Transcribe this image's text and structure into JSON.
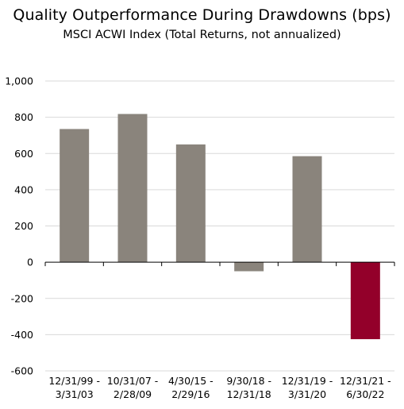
{
  "chart_data": {
    "type": "bar",
    "title": "Quality Outperformance During Drawdowns (bps)",
    "subtitle": "MSCI ACWI Index (Total Returns, not annualized)",
    "xlabel": "",
    "ylabel": "",
    "ylim": [
      -600,
      1000
    ],
    "yticks": [
      -600,
      -400,
      -200,
      0,
      200,
      400,
      600,
      800,
      1000
    ],
    "ytick_labels": [
      "-600",
      "-400",
      "-200",
      "0",
      "200",
      "400",
      "600",
      "800",
      "1,000"
    ],
    "grid": true,
    "categories": [
      [
        "12/31/99 -",
        "3/31/03"
      ],
      [
        "10/31/07 -",
        "2/28/09"
      ],
      [
        "4/30/15 -",
        "2/29/16"
      ],
      [
        "9/30/18 -",
        "12/31/18"
      ],
      [
        "12/31/19 -",
        "3/31/20"
      ],
      [
        "12/31/21 -",
        "6/30/22"
      ]
    ],
    "values": [
      735,
      818,
      650,
      -50,
      585,
      -425
    ],
    "colors": [
      "#8a847c",
      "#8a847c",
      "#8a847c",
      "#8a847c",
      "#8a847c",
      "#93002a"
    ],
    "gridline_color": "#d9d9d9",
    "axis_color": "#000000"
  }
}
